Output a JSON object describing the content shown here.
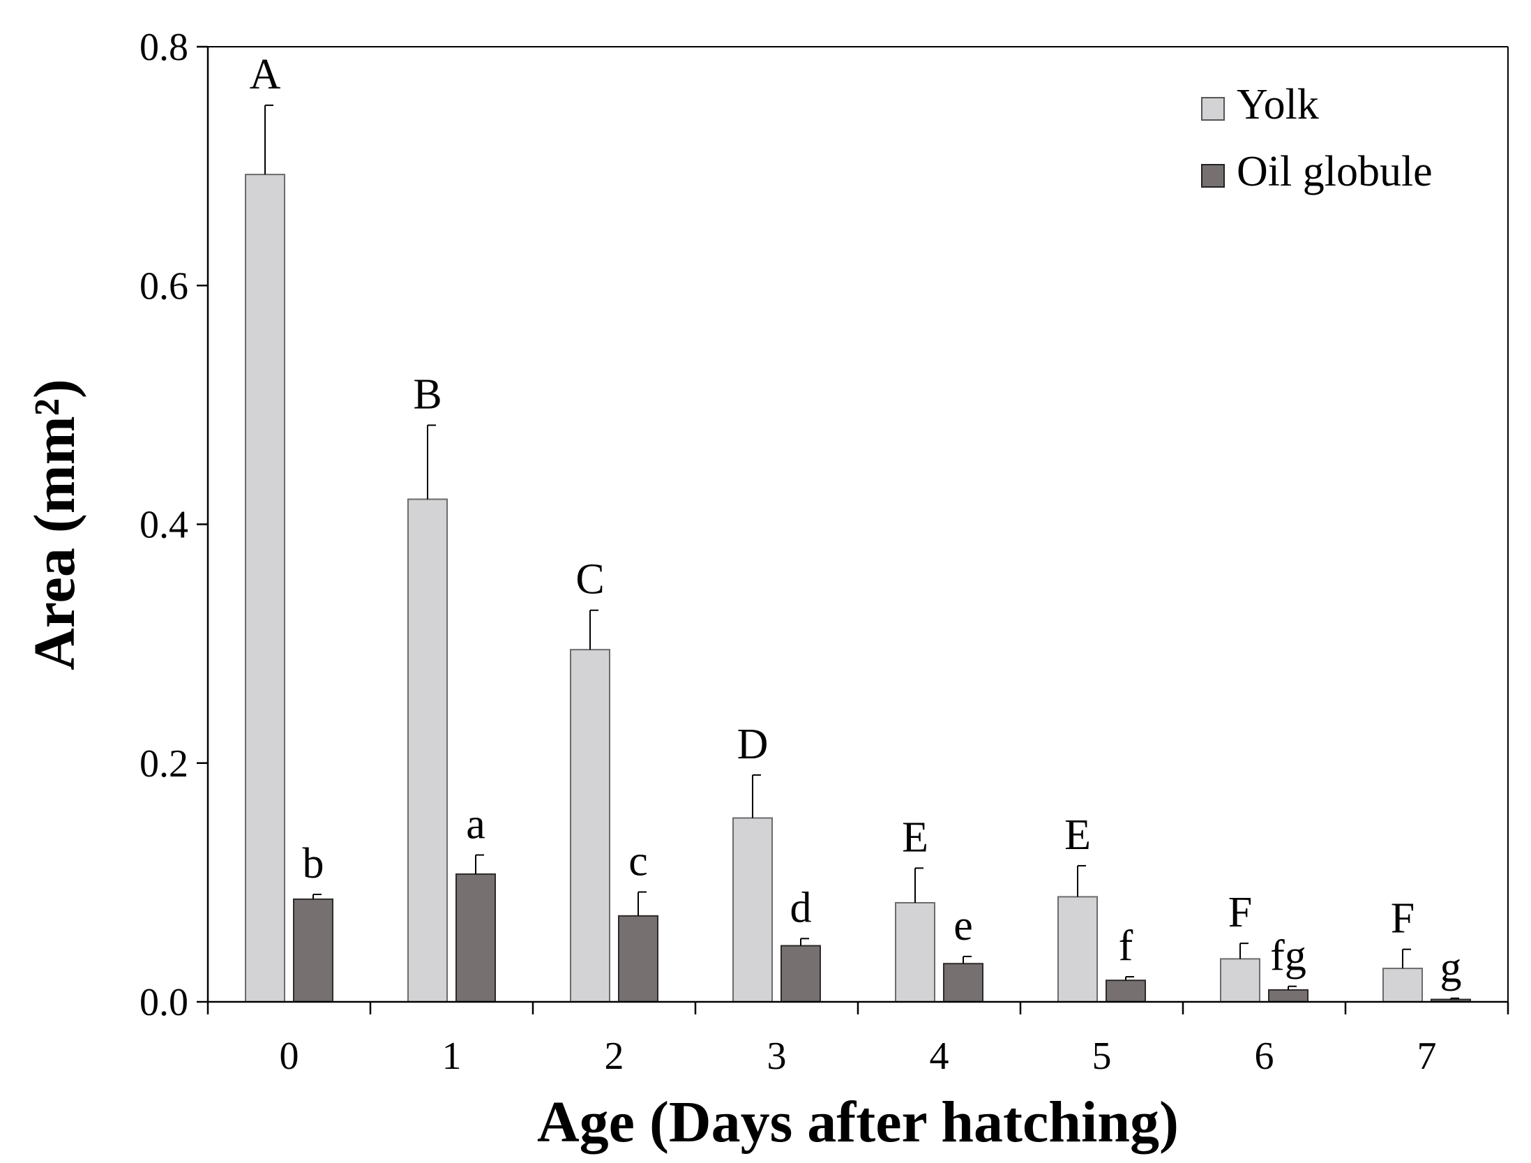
{
  "chart_data": {
    "type": "bar",
    "title": "",
    "xlabel": "Age (Days after hatching)",
    "ylabel": "Area (mm²)",
    "ylim": [
      0,
      0.8
    ],
    "yticks": [
      "0.0",
      "0.2",
      "0.4",
      "0.6",
      "0.8"
    ],
    "ytick_values": [
      0,
      0.2,
      0.4,
      0.6,
      0.8
    ],
    "categories": [
      "0",
      "1",
      "2",
      "3",
      "4",
      "5",
      "6",
      "7"
    ],
    "legend_position": "top-right",
    "series": [
      {
        "name": "Yolk",
        "color": "#d3d3d5",
        "values": [
          0.693,
          0.421,
          0.295,
          0.154,
          0.083,
          0.088,
          0.036,
          0.028
        ],
        "errors": [
          0.058,
          0.062,
          0.033,
          0.036,
          0.029,
          0.026,
          0.013,
          0.016
        ],
        "significance": [
          "A",
          "B",
          "C",
          "D",
          "E",
          "E",
          "F",
          "F"
        ]
      },
      {
        "name": "Oil globule",
        "color": "#767070",
        "values": [
          0.086,
          0.107,
          0.072,
          0.047,
          0.032,
          0.018,
          0.01,
          0.002
        ],
        "errors": [
          0.004,
          0.016,
          0.02,
          0.006,
          0.006,
          0.003,
          0.003,
          0.001
        ],
        "significance": [
          "b",
          "a",
          "c",
          "d",
          "e",
          "f",
          "fg",
          "g"
        ]
      }
    ]
  }
}
